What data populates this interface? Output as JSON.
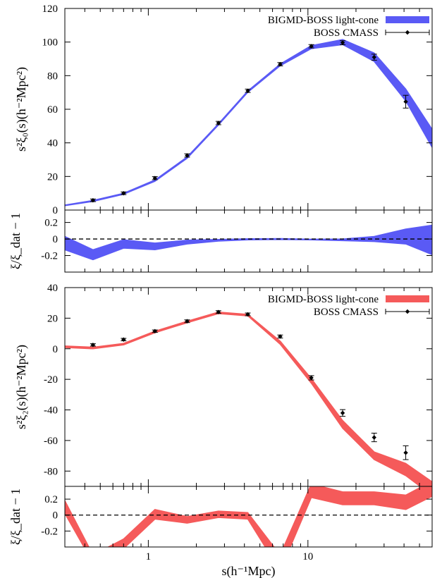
{
  "chart_data": [
    {
      "type": "line",
      "panel": "xi0",
      "ylabel": "s²ξ₀(s)(h⁻²Mpc²)",
      "xlabel": "",
      "xscale": "log",
      "xlim": [
        0.3,
        60
      ],
      "ylim": [
        0,
        120
      ],
      "yticks": [
        0,
        20,
        40,
        60,
        80,
        100,
        120
      ],
      "legend_position": "top-right",
      "color": "#5a5af5",
      "series": [
        {
          "name": "BIGMD-BOSS light-cone",
          "style": "band",
          "x": [
            0.3,
            0.45,
            0.7,
            1.1,
            1.75,
            2.75,
            4.2,
            6.7,
            10.5,
            16.5,
            26,
            41,
            62
          ],
          "lower": [
            2.6,
            5.1,
            9.4,
            17.1,
            30.8,
            50.6,
            70.1,
            85.9,
            96.1,
            98.5,
            88.5,
            65.0,
            35.0
          ],
          "upper": [
            3.0,
            5.7,
            10.0,
            17.9,
            31.6,
            51.4,
            70.9,
            86.9,
            97.9,
            101.5,
            93.5,
            72.0,
            46.0
          ]
        },
        {
          "name": "BOSS CMASS",
          "style": "errorbar",
          "x": [
            0.45,
            0.7,
            1.1,
            1.75,
            2.75,
            4.2,
            6.7,
            10.5,
            16.5,
            26,
            41
          ],
          "y": [
            5.8,
            10.0,
            19.0,
            32.5,
            51.8,
            71.0,
            86.8,
            97.5,
            99.6,
            91.0,
            64.5
          ],
          "err": [
            0.8,
            0.8,
            0.9,
            1.0,
            1.0,
            1.0,
            1.0,
            1.0,
            1.2,
            1.8,
            3.8
          ]
        }
      ]
    },
    {
      "type": "line",
      "panel": "ratio0",
      "ylabel": "ξ/ξ_dat − 1",
      "xscale": "log",
      "xlim": [
        0.3,
        60
      ],
      "ylim": [
        -0.4,
        0.35
      ],
      "yticks": [
        -0.2,
        0,
        0.2
      ],
      "ytick_labels": [
        "-0.2",
        "0",
        "0.2"
      ],
      "color": "#5a5af5",
      "series": [
        {
          "style": "band",
          "x": [
            0.3,
            0.45,
            0.7,
            1.1,
            1.75,
            2.75,
            4.2,
            6.7,
            10.5,
            16.5,
            26,
            41,
            62
          ],
          "lower": [
            -0.13,
            -0.25,
            -0.11,
            -0.13,
            -0.06,
            -0.025,
            -0.01,
            -0.005,
            -0.01,
            -0.02,
            -0.03,
            -0.06,
            -0.2
          ],
          "upper": [
            0.03,
            -0.13,
            -0.01,
            -0.05,
            -0.015,
            -0.005,
            0.002,
            0.005,
            -0.003,
            0.0,
            0.03,
            0.12,
            0.17
          ]
        },
        {
          "style": "reference-line",
          "y": 0
        }
      ]
    },
    {
      "type": "line",
      "panel": "xi2",
      "ylabel": "s²ξ₂(s)(h⁻²Mpc²)",
      "xscale": "log",
      "xlim": [
        0.3,
        60
      ],
      "ylim": [
        -90,
        40
      ],
      "yticks": [
        -80,
        -60,
        -40,
        -20,
        0,
        20,
        40
      ],
      "legend_position": "top-right",
      "color": "#f55a5a",
      "series": [
        {
          "name": "BIGMD-BOSS light-cone",
          "style": "band",
          "x": [
            0.3,
            0.45,
            0.7,
            1.1,
            1.75,
            2.75,
            4.2,
            6.7,
            10.5,
            16.5,
            26,
            41,
            62
          ],
          "lower": [
            0.8,
            0.0,
            2.5,
            10.5,
            17.0,
            23.0,
            21.5,
            3.0,
            -22.5,
            -52.0,
            -72.5,
            -83.0,
            -97.0
          ],
          "upper": [
            1.8,
            1.0,
            3.5,
            11.5,
            18.0,
            24.0,
            22.5,
            5.0,
            -19.5,
            -47.0,
            -67.5,
            -75.0,
            -88.0
          ]
        },
        {
          "name": "BOSS CMASS",
          "style": "errorbar",
          "x": [
            0.45,
            0.7,
            1.1,
            1.75,
            2.75,
            4.2,
            6.7,
            10.5,
            16.5,
            26,
            41
          ],
          "y": [
            2.5,
            6.0,
            11.5,
            18.0,
            24.0,
            22.5,
            8.0,
            -19.0,
            -42.0,
            -58.0,
            -68.0
          ],
          "err": [
            0.8,
            0.8,
            0.8,
            0.9,
            0.9,
            0.9,
            1.0,
            1.4,
            2.2,
            2.8,
            4.5
          ]
        }
      ]
    },
    {
      "type": "line",
      "panel": "ratio2",
      "ylabel": "ξ/ξ_dat − 1",
      "xlabel": "s(h⁻¹Mpc)",
      "xscale": "log",
      "xlim": [
        0.3,
        60
      ],
      "ylim": [
        -0.4,
        0.36
      ],
      "yticks": [
        -0.2,
        0,
        0.2
      ],
      "ytick_labels": [
        "-0.2",
        "0",
        "0.2"
      ],
      "xticks": [
        1,
        10
      ],
      "xtick_labels": [
        "1",
        "10"
      ],
      "color": "#f55a5a",
      "series": [
        {
          "style": "band",
          "x": [
            0.3,
            0.45,
            0.7,
            1.1,
            1.75,
            2.75,
            4.2,
            6.7,
            10.5,
            16.5,
            26,
            41,
            62
          ],
          "lower": [
            0.02,
            -0.6,
            -0.42,
            -0.05,
            -0.1,
            -0.03,
            -0.05,
            -0.7,
            0.22,
            0.13,
            0.13,
            0.07,
            0.25
          ],
          "upper": [
            0.18,
            -0.5,
            -0.3,
            0.07,
            -0.02,
            0.05,
            0.03,
            -0.5,
            0.39,
            0.29,
            0.29,
            0.25,
            0.44
          ]
        },
        {
          "style": "reference-line",
          "y": 0
        }
      ]
    }
  ]
}
